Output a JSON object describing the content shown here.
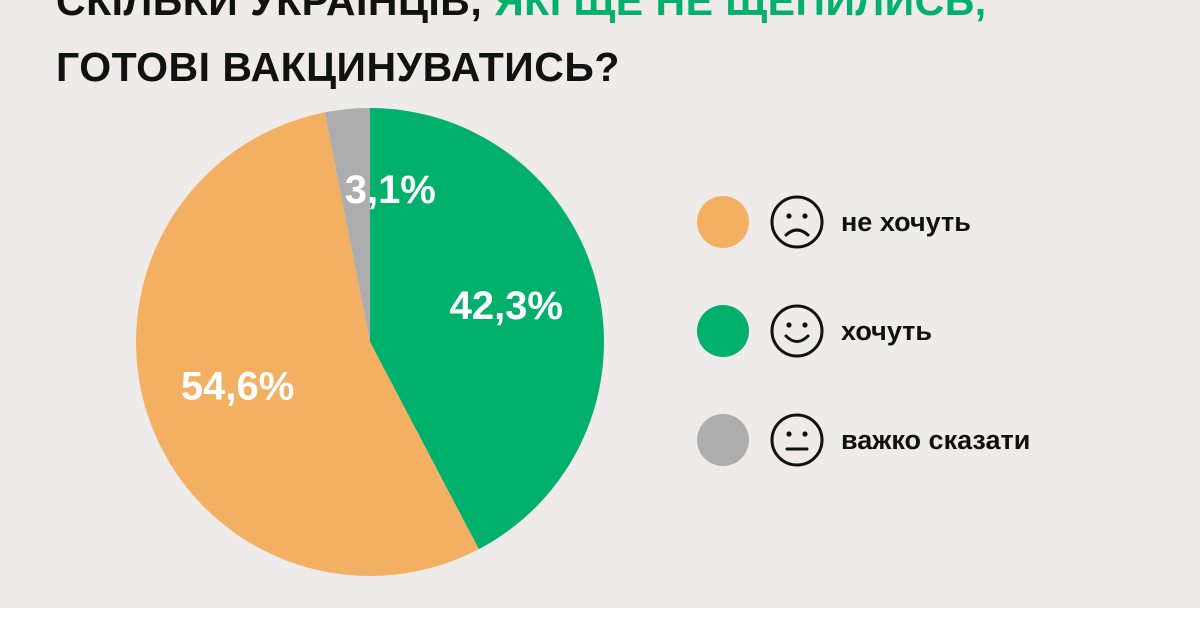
{
  "title": {
    "line1_black": "СКІЛЬКИ УКРАЇНЦІВ,",
    "line1_green": "ЯКІ ЩЕ НЕ ЩЕПИЛИСЬ,",
    "line2": "ГОТОВІ ВАКЦИНУВАТИСЬ?"
  },
  "colors": {
    "background": "#eeebea",
    "title_text": "#111111",
    "title_accent": "#00b06b",
    "orange": "#f3b062",
    "green": "#00b06b",
    "gray": "#adadad"
  },
  "chart_data": {
    "type": "pie",
    "title": "СКІЛЬКИ УКРАЇНЦІВ, ЯКІ ЩЕ НЕ ЩЕПИЛИСЬ, ГОТОВІ ВАКЦИНУВАТИСЬ?",
    "start_angle_deg": 0,
    "direction": "clockwise",
    "legend_placement": "right",
    "slices": [
      {
        "name": "хочуть",
        "value": 42.3,
        "label": "42,3%",
        "color": "#00b06b",
        "icon": "smile-face-icon"
      },
      {
        "name": "не хочуть",
        "value": 54.6,
        "label": "54,6%",
        "color": "#f3b062",
        "icon": "sad-face-icon"
      },
      {
        "name": "важко сказати",
        "value": 3.1,
        "label": "3,1%",
        "color": "#adadad",
        "icon": "neutral-face-icon"
      }
    ]
  },
  "legend": {
    "items": [
      {
        "label": "не хочуть",
        "color": "#f3b062",
        "icon": "sad-face-icon"
      },
      {
        "label": "хочуть",
        "color": "#00b06b",
        "icon": "smile-face-icon"
      },
      {
        "label": "важко сказати",
        "color": "#adadad",
        "icon": "neutral-face-icon"
      }
    ]
  }
}
